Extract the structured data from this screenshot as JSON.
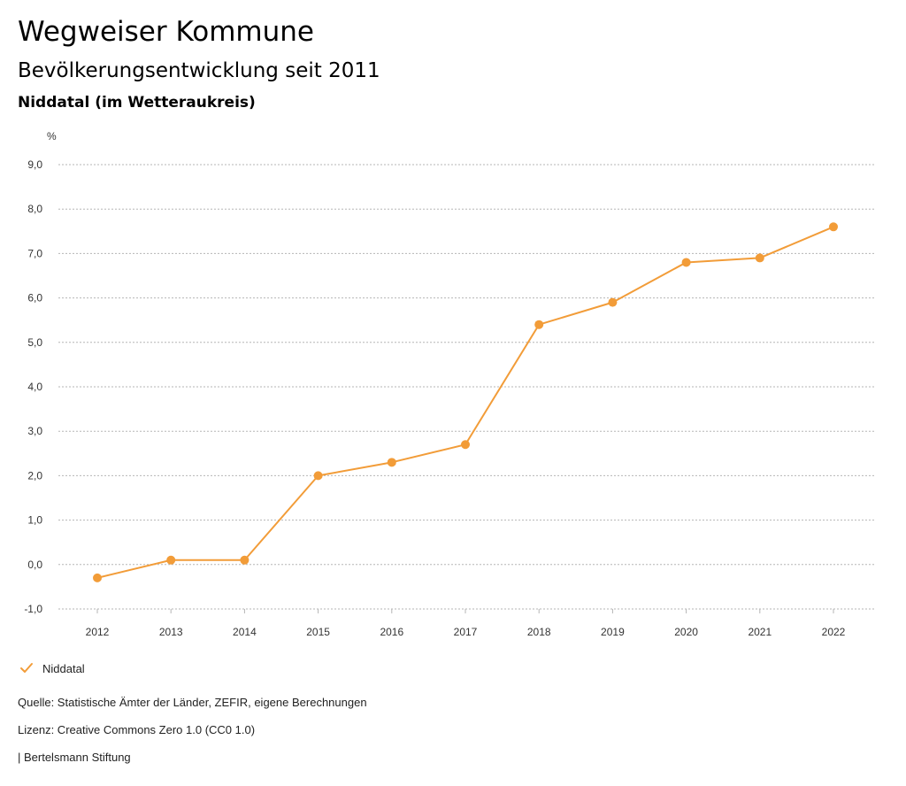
{
  "header": {
    "title": "Wegweiser Kommune",
    "subtitle": "Bevölkerungsentwicklung seit 2011",
    "region": "Niddatal (im Wetteraukreis)"
  },
  "colors": {
    "series": "#f29c38",
    "grid": "#b5b5b5",
    "axis_text": "#333333"
  },
  "chart_data": {
    "type": "line",
    "ylabel": "%",
    "xlabel": "",
    "ylim": [
      -1,
      9
    ],
    "y_ticks": [
      "-1,0",
      "0,0",
      "1,0",
      "2,0",
      "3,0",
      "4,0",
      "5,0",
      "6,0",
      "7,0",
      "8,0",
      "9,0"
    ],
    "x": [
      "2012",
      "2013",
      "2014",
      "2015",
      "2016",
      "2017",
      "2018",
      "2019",
      "2020",
      "2021",
      "2022"
    ],
    "series": [
      {
        "name": "Niddatal",
        "values": [
          -0.3,
          0.1,
          0.1,
          2.0,
          2.3,
          2.7,
          5.4,
          5.9,
          6.8,
          6.9,
          7.6
        ]
      }
    ],
    "grid": true,
    "legend_position": "bottom-left"
  },
  "footer": {
    "source": "Quelle: Statistische Ämter der Länder, ZEFIR, eigene Berechnungen",
    "license": "Lizenz: Creative Commons Zero 1.0 (CC0 1.0)",
    "publisher": "| Bertelsmann Stiftung"
  }
}
